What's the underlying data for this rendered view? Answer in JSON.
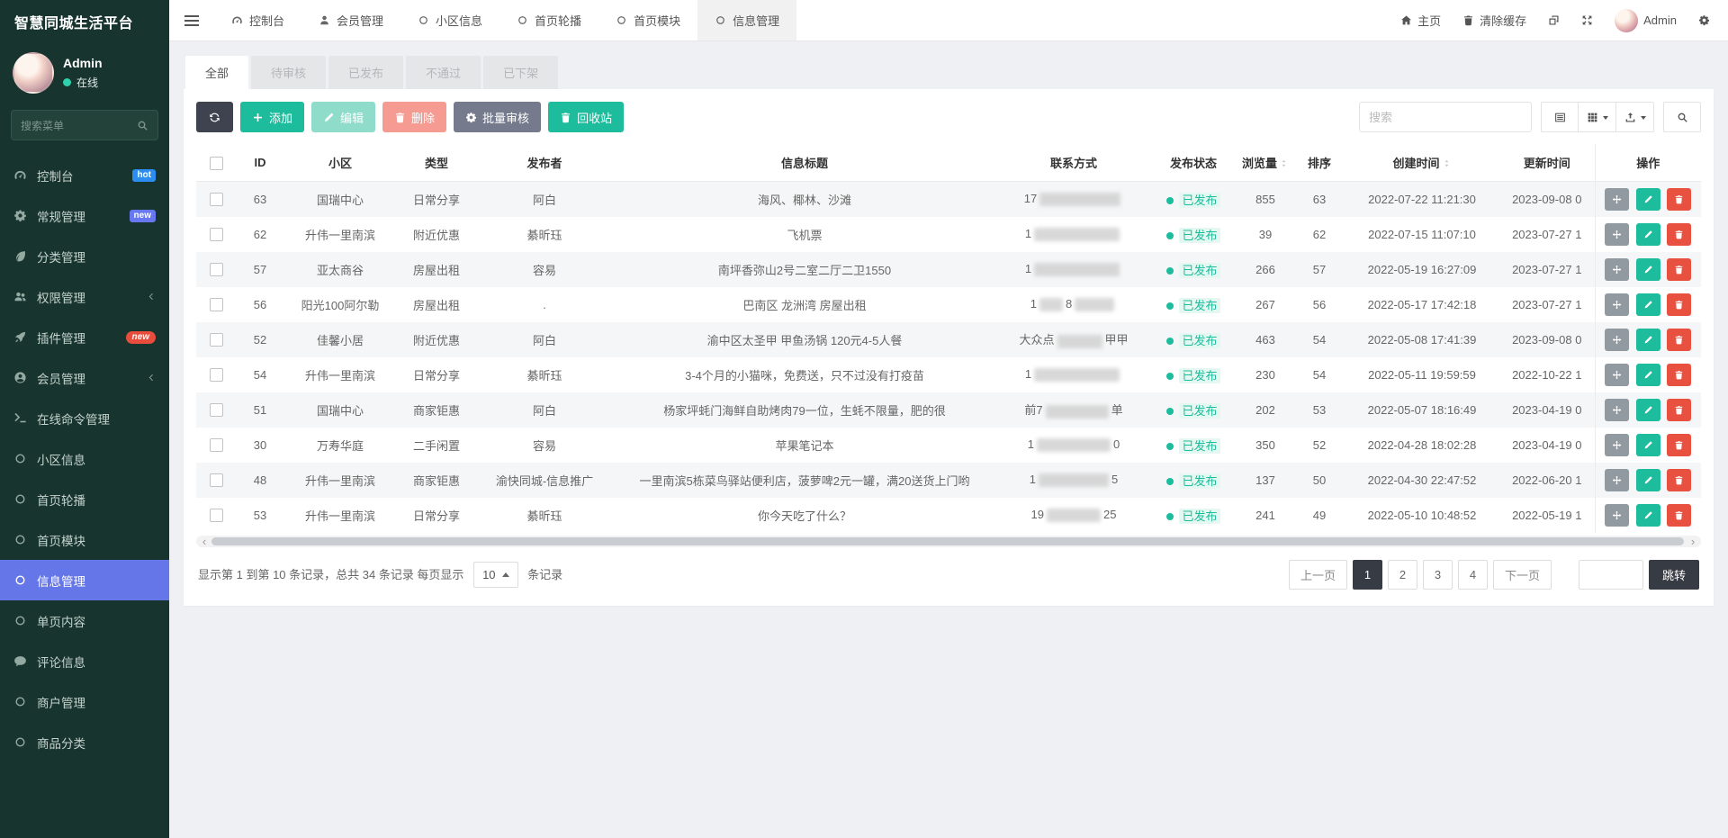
{
  "app": {
    "title": "智慧同城生活平台"
  },
  "user": {
    "name": "Admin",
    "status": "在线"
  },
  "colors": {
    "accent": "#6577e8",
    "success": "#1cbc9c",
    "danger": "#e8503f",
    "hot_badge": "#2d8cf0",
    "new_badge_violet": "#6777ef",
    "new_badge_red": "#e74c3c"
  },
  "sidebar": {
    "search_placeholder": "搜索菜单",
    "items": [
      {
        "name": "dashboard",
        "label": "控制台",
        "icon": "dashboard",
        "badge": {
          "text": "hot",
          "color": "#2d8cf0",
          "pill": false
        }
      },
      {
        "name": "general",
        "label": "常规管理",
        "icon": "gears",
        "badge": {
          "text": "new",
          "color": "#6777ef",
          "pill": false
        }
      },
      {
        "name": "category",
        "label": "分类管理",
        "icon": "leaf"
      },
      {
        "name": "auth",
        "label": "权限管理",
        "icon": "users",
        "arrow": true
      },
      {
        "name": "addon",
        "label": "插件管理",
        "icon": "rocket",
        "badge": {
          "text": "new",
          "color": "#e74c3c",
          "pill": true
        }
      },
      {
        "name": "member",
        "label": "会员管理",
        "icon": "usercircle",
        "arrow": true
      },
      {
        "name": "command",
        "label": "在线命令管理",
        "icon": "terminal"
      },
      {
        "name": "community",
        "label": "小区信息",
        "icon": "circle"
      },
      {
        "name": "banner",
        "label": "首页轮播",
        "icon": "circle"
      },
      {
        "name": "module",
        "label": "首页模块",
        "icon": "circle"
      },
      {
        "name": "information",
        "label": "信息管理",
        "icon": "circle",
        "active": true
      },
      {
        "name": "page",
        "label": "单页内容",
        "icon": "circle"
      },
      {
        "name": "comment",
        "label": "评论信息",
        "icon": "comment"
      },
      {
        "name": "merchant",
        "label": "商户管理",
        "icon": "circle"
      },
      {
        "name": "goods-category",
        "label": "商品分类",
        "icon": "circle"
      }
    ]
  },
  "navbar": {
    "tabs": [
      {
        "name": "dashboard",
        "label": "控制台",
        "icon": "dashboard"
      },
      {
        "name": "member",
        "label": "会员管理",
        "icon": "user"
      },
      {
        "name": "community",
        "label": "小区信息",
        "icon": "circle"
      },
      {
        "name": "banner",
        "label": "首页轮播",
        "icon": "circle"
      },
      {
        "name": "module",
        "label": "首页模块",
        "icon": "circle"
      },
      {
        "name": "information",
        "label": "信息管理",
        "icon": "circle",
        "active": true
      }
    ],
    "right": [
      {
        "name": "home",
        "label": "主页",
        "icon": "home"
      },
      {
        "name": "clear-cache",
        "label": "清除缓存",
        "icon": "trash"
      },
      {
        "name": "tab-toggle",
        "label": "",
        "icon": "tabtoggle"
      },
      {
        "name": "fullscreen",
        "label": "",
        "icon": "expand"
      },
      {
        "name": "admin-user",
        "label": "Admin",
        "avatar": true
      },
      {
        "name": "settings",
        "label": "",
        "icon": "gears"
      }
    ]
  },
  "content": {
    "status_tabs": [
      {
        "label": "全部",
        "active": true
      },
      {
        "label": "待审核"
      },
      {
        "label": "已发布"
      },
      {
        "label": "不通过"
      },
      {
        "label": "已下架"
      }
    ],
    "toolbar": {
      "buttons": [
        {
          "name": "refresh",
          "label": "",
          "icon": "refresh",
          "style": "dark"
        },
        {
          "name": "add",
          "label": "添加",
          "icon": "plus",
          "style": "green"
        },
        {
          "name": "edit",
          "label": "编辑",
          "icon": "pencil",
          "style": "green-light"
        },
        {
          "name": "delete",
          "label": "删除",
          "icon": "trash",
          "style": "red-light"
        },
        {
          "name": "batch-audit",
          "label": "批量审核",
          "icon": "gears",
          "style": "slate"
        },
        {
          "name": "recycle-bin",
          "label": "回收站",
          "icon": "trash",
          "style": "green"
        }
      ],
      "search_placeholder": "搜索",
      "view_buttons": [
        {
          "name": "toggle-view",
          "icon": "list",
          "caret": false
        },
        {
          "name": "toggle-columns",
          "icon": "grid",
          "caret": true
        },
        {
          "name": "export",
          "icon": "export",
          "caret": true
        }
      ]
    },
    "table": {
      "columns": [
        {
          "key": "check",
          "label": ""
        },
        {
          "key": "id",
          "label": "ID"
        },
        {
          "key": "community",
          "label": "小区"
        },
        {
          "key": "type",
          "label": "类型"
        },
        {
          "key": "publisher",
          "label": "发布者"
        },
        {
          "key": "title",
          "label": "信息标题"
        },
        {
          "key": "contact",
          "label": "联系方式"
        },
        {
          "key": "status",
          "label": "发布状态"
        },
        {
          "key": "views",
          "label": "浏览量",
          "sortable": true
        },
        {
          "key": "sort",
          "label": "排序"
        },
        {
          "key": "created",
          "label": "创建时间",
          "sortable": true
        },
        {
          "key": "updated",
          "label": "更新时间"
        },
        {
          "key": "actions",
          "label": "操作"
        }
      ],
      "rows": [
        {
          "id": "63",
          "community": "国瑞中心",
          "type": "日常分享",
          "publisher": "阿白",
          "title": "海风、椰林、沙滩",
          "contact": [
            {
              "t": "17"
            },
            {
              "b": 90
            }
          ],
          "status": "已发布",
          "views": "855",
          "sort": "63",
          "created": "2022-07-22 11:21:30",
          "updated": "2023-09-08 0"
        },
        {
          "id": "62",
          "community": "升伟一里南滨",
          "type": "附近优惠",
          "publisher": "綦昕珏",
          "title": "飞机票",
          "contact": [
            {
              "t": "1"
            },
            {
              "b": 95
            }
          ],
          "status": "已发布",
          "views": "39",
          "sort": "62",
          "created": "2022-07-15 11:07:10",
          "updated": "2023-07-27 1"
        },
        {
          "id": "57",
          "community": "亚太商谷",
          "type": "房屋出租",
          "publisher": "容易",
          "title": "南坪香弥山2号二室二厅二卫1550",
          "contact": [
            {
              "t": "1"
            },
            {
              "b": 95
            }
          ],
          "status": "已发布",
          "views": "266",
          "sort": "57",
          "created": "2022-05-19 16:27:09",
          "updated": "2023-07-27 1"
        },
        {
          "id": "56",
          "community": "阳光100阿尔勒",
          "type": "房屋出租",
          "publisher": ".",
          "title": "巴南区 龙洲湾 房屋出租",
          "contact": [
            {
              "t": "1"
            },
            {
              "b": 26
            },
            {
              "t": "8"
            },
            {
              "b": 44
            }
          ],
          "status": "已发布",
          "views": "267",
          "sort": "56",
          "created": "2022-05-17 17:42:18",
          "updated": "2023-07-27 1"
        },
        {
          "id": "52",
          "community": "佳馨小居",
          "type": "附近优惠",
          "publisher": "阿白",
          "title": "渝中区太圣甲 甲鱼汤锅 120元4-5人餐",
          "contact": [
            {
              "t": "大众点"
            },
            {
              "b": 50
            },
            {
              "t": "甲甲"
            }
          ],
          "status": "已发布",
          "views": "463",
          "sort": "54",
          "created": "2022-05-08 17:41:39",
          "updated": "2023-09-08 0"
        },
        {
          "id": "54",
          "community": "升伟一里南滨",
          "type": "日常分享",
          "publisher": "綦昕珏",
          "title": "3-4个月的小猫咪，免费送，只不过没有打疫苗",
          "contact": [
            {
              "t": "1"
            },
            {
              "b": 95
            }
          ],
          "status": "已发布",
          "views": "230",
          "sort": "54",
          "created": "2022-05-11 19:59:59",
          "updated": "2022-10-22 1"
        },
        {
          "id": "51",
          "community": "国瑞中心",
          "type": "商家钜惠",
          "publisher": "阿白",
          "title": "杨家坪蚝门海鲜自助烤肉79一位，生蚝不限量，肥的很",
          "contact": [
            {
              "t": "前7"
            },
            {
              "b": 70
            },
            {
              "t": "单"
            }
          ],
          "status": "已发布",
          "views": "202",
          "sort": "53",
          "created": "2022-05-07 18:16:49",
          "updated": "2023-04-19 0"
        },
        {
          "id": "30",
          "community": "万寿华庭",
          "type": "二手闲置",
          "publisher": "容易",
          "title": "苹果笔记本",
          "contact": [
            {
              "t": "1"
            },
            {
              "b": 82
            },
            {
              "t": "0"
            }
          ],
          "status": "已发布",
          "views": "350",
          "sort": "52",
          "created": "2022-04-28 18:02:28",
          "updated": "2023-04-19 0"
        },
        {
          "id": "48",
          "community": "升伟一里南滨",
          "type": "商家钜惠",
          "publisher": "渝快同城-信息推广",
          "title": "一里南滨5栋菜鸟驿站便利店，菠萝啤2元一罐，满20送货上门哟",
          "contact": [
            {
              "t": "1"
            },
            {
              "b": 78
            },
            {
              "t": "5"
            }
          ],
          "status": "已发布",
          "views": "137",
          "sort": "50",
          "created": "2022-04-30 22:47:52",
          "updated": "2022-06-20 1"
        },
        {
          "id": "53",
          "community": "升伟一里南滨",
          "type": "日常分享",
          "publisher": "綦昕珏",
          "title": "你今天吃了什么？",
          "contact": [
            {
              "t": "19"
            },
            {
              "b": 60
            },
            {
              "t": "25"
            }
          ],
          "status": "已发布",
          "views": "241",
          "sort": "49",
          "created": "2022-05-10 10:48:52",
          "updated": "2022-05-19 1"
        }
      ]
    },
    "pagination": {
      "summary_prefix": "显示第 1 到第 10 条记录，总共 34 条记录 每页显示",
      "page_size": "10",
      "summary_suffix": "条记录",
      "prev": "上一页",
      "next": "下一页",
      "pages": [
        "1",
        "2",
        "3",
        "4"
      ],
      "active_page": "1",
      "jump_label": "跳转"
    }
  }
}
